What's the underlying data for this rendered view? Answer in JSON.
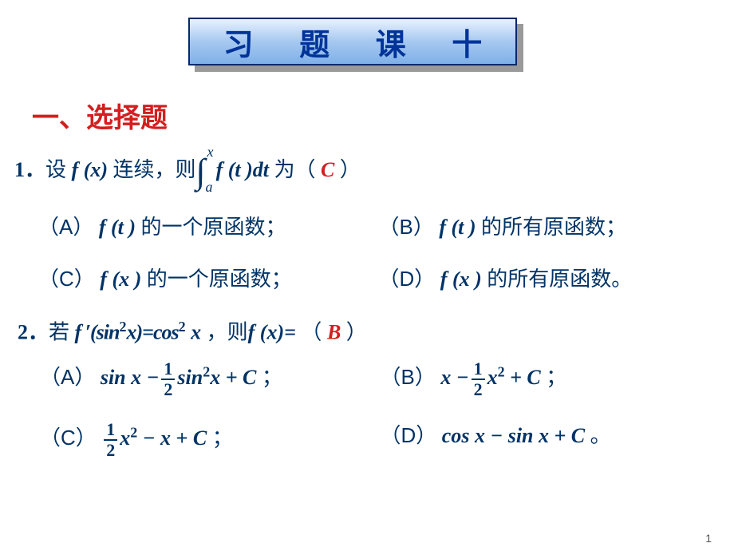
{
  "colors": {
    "text": "#003366",
    "accent": "#d21f1f",
    "title_border": "#002a6a",
    "title_text": "#003399",
    "shadow": "#9a9a9a",
    "bg": "#ffffff"
  },
  "typography": {
    "title_fontsize": 38,
    "heading_fontsize": 34,
    "body_fontsize": 26,
    "super_fontsize": 18
  },
  "title": "习  题  课  十",
  "section_heading": "一、选择题",
  "q1": {
    "number": "1．",
    "prefix": "设",
    "fx": "f (x)",
    "mid": " 连续，则",
    "int_upper": "x",
    "int_lower": "a",
    "integrand": "f (t )dt",
    "suffix": " 为（  ",
    "answer": "C",
    "close": "  ）",
    "options": {
      "A": {
        "label": "（A）",
        "func": "f (t )",
        "text": " 的一个原函数；"
      },
      "B": {
        "label": "（B）",
        "func": "f (t )",
        "text": " 的所有原函数；"
      },
      "C": {
        "label": "（C）",
        "func": "f (x )",
        "text": " 的一个原函数；"
      },
      "D": {
        "label": "（D）",
        "func": "f (x )",
        "text": " 的所有原函数。"
      }
    }
  },
  "q2": {
    "number": "2．",
    "prefix": "若 ",
    "lhs1": "f ′(sin",
    "exp1": "2",
    "lhs2": "x)=cos",
    "exp2": "2",
    "lhs3": " x",
    "mid": " ，则",
    "fx": "f (x)=",
    "open": " （ ",
    "answer": "B",
    "close": " ）",
    "options": {
      "A": {
        "label": "（A）",
        "pre": "sin x −",
        "frac_num": "1",
        "frac_den": "2",
        "after_frac": "sin",
        "exp": "2",
        "tail": "x + C",
        "end": " ；"
      },
      "B": {
        "label": "（B）",
        "pre": "x −",
        "frac_num": "1",
        "frac_den": "2",
        "after_frac": "x",
        "exp": "2",
        "tail": " + C",
        "end": " ；"
      },
      "C": {
        "label": "（C）",
        "frac_num": "1",
        "frac_den": "2",
        "after_frac": "x",
        "exp": "2",
        "tail": " − x + C",
        "end": " ；"
      },
      "D": {
        "label": "（D）",
        "expr": "cos x − sin x + C",
        "end": " 。"
      }
    }
  },
  "page_number": "1"
}
